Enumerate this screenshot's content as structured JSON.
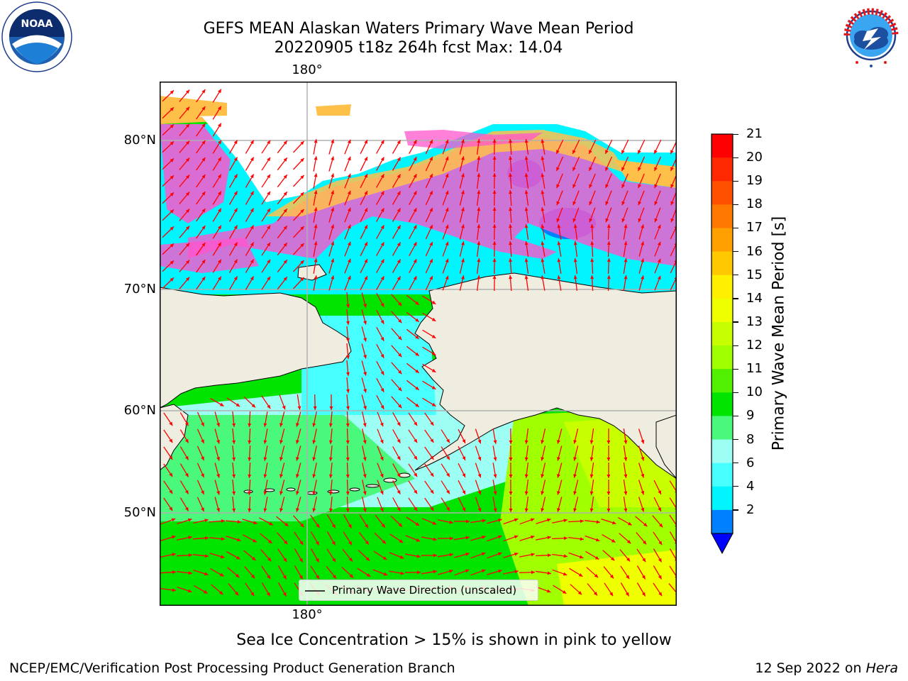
{
  "header": {
    "title_line1": "GEFS MEAN Alaskan Waters Primary Wave Mean Period",
    "title_line2": "20220905 t18z 264h fcst   Max: 14.04"
  },
  "logos": {
    "noaa_text": "NOAA",
    "noaa_ring": "NATIONAL OCEANIC AND ATMOSPHERIC ADMINISTRATION · U.S. DEPARTMENT OF COMMERCE",
    "nws_ring": "NATIONAL WEATHER SERVICE"
  },
  "map": {
    "lon_top": "180°",
    "lon_bottom": "180°",
    "lat_labels": [
      "80°N",
      "70°N",
      "60°N",
      "50°N"
    ],
    "legend_label": "Primary Wave Direction (unscaled)",
    "colors": {
      "land": "#efeddf",
      "ice_pink": "#ff55cc",
      "ice_orange": "#ffc04a",
      "ice_yellow": "#fff38a",
      "arrow": "#ff0000"
    }
  },
  "colorbar": {
    "label": "Primary Wave Mean Period [s]",
    "ticks": [
      "21",
      "20",
      "19",
      "18",
      "17",
      "16",
      "15",
      "14",
      "13",
      "12",
      "11",
      "10",
      "9",
      "8",
      "6",
      "4",
      "2"
    ],
    "bands": [
      "#ff0000",
      "#ff2800",
      "#ff5000",
      "#ff7800",
      "#ffa000",
      "#ffc800",
      "#fff000",
      "#f0ff00",
      "#c8ff00",
      "#a0ff00",
      "#50f000",
      "#00e400",
      "#4af87c",
      "#9dfff4",
      "#48ffff",
      "#00f5ff",
      "#0080ff"
    ],
    "extend_color": "#0000ff"
  },
  "notes": {
    "ice": "Sea Ice Concentration > 15% is shown in pink to yellow"
  },
  "footer": {
    "left": "NCEP/EMC/Verification Post Processing Product Generation Branch",
    "date": "12 Sep 2022 on",
    "machine": "Hera"
  }
}
